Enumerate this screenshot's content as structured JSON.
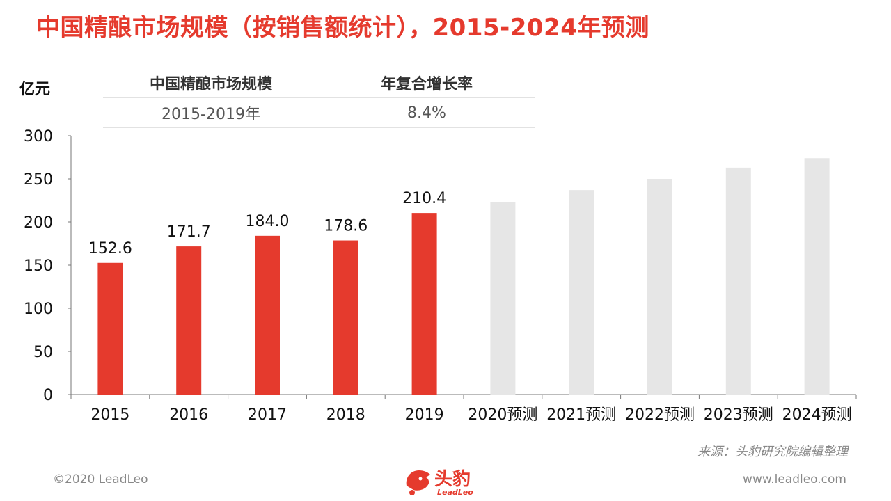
{
  "title": "中国精酿市场规模（按销售额统计），2015-2024年预测",
  "colors": {
    "accent": "#e53a2d",
    "actual_bar": "#e53a2d",
    "forecast_bar": "#e6e6e6",
    "axis": "#777777"
  },
  "cagr_table": {
    "headers": [
      "中国精酿市场规模",
      "年复合增长率"
    ],
    "rows": [
      [
        "2015-2019年",
        "8.4%"
      ]
    ]
  },
  "footer": {
    "source": "来源：头豹研究院编辑整理",
    "copyright": "©2020 LeadLeo",
    "website": "www.leadleo.com",
    "logo_text": "头豹",
    "logo_sub": "LeadLeo"
  },
  "chart_data": {
    "type": "bar",
    "title": "中国精酿市场规模（按销售额统计），2015-2024年预测",
    "ylabel": "亿元",
    "xlabel": "",
    "ylim": [
      0,
      300
    ],
    "yticks": [
      0,
      50,
      100,
      150,
      200,
      250,
      300
    ],
    "grid": false,
    "categories": [
      "2015",
      "2016",
      "2017",
      "2018",
      "2019",
      "2020预测",
      "2021预测",
      "2022预测",
      "2023预测",
      "2024预测"
    ],
    "values": [
      152.6,
      171.7,
      184.0,
      178.6,
      210.4,
      223,
      237,
      250,
      263,
      274
    ],
    "labels": [
      "152.6",
      "171.7",
      "184.0",
      "178.6",
      "210.4",
      "",
      "",
      "",
      "",
      ""
    ],
    "forecast": [
      false,
      false,
      false,
      false,
      false,
      true,
      true,
      true,
      true,
      true
    ]
  }
}
